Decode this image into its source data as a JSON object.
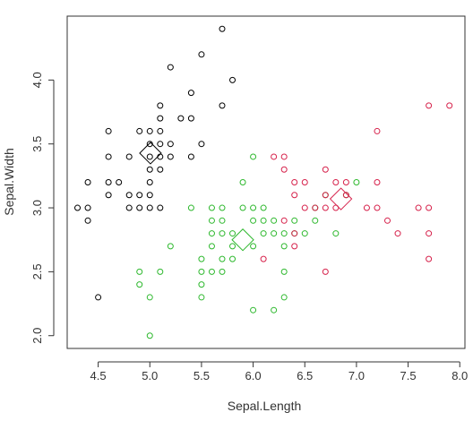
{
  "chart_data": {
    "type": "scatter",
    "xlabel": "Sepal.Length",
    "ylabel": "Sepal.Width",
    "xlim": [
      4.2,
      8.05
    ],
    "ylim": [
      1.9,
      4.5
    ],
    "xticks": [
      4.5,
      5.0,
      5.5,
      6.0,
      6.5,
      7.0,
      7.5,
      8.0
    ],
    "xtick_labels": [
      "4.5",
      "5.0",
      "5.5",
      "6.0",
      "6.5",
      "7.0",
      "7.5",
      "8.0"
    ],
    "yticks": [
      2.0,
      2.5,
      3.0,
      3.5,
      4.0
    ],
    "ytick_labels": [
      "2.0",
      "2.5",
      "3.0",
      "3.5",
      "4.0"
    ],
    "grid": false,
    "legend": "none",
    "colors": {
      "cluster1": "#000000",
      "cluster2": "#2db82d",
      "cluster3": "#d6204a",
      "axis": "#333333"
    },
    "series": [
      {
        "color": "#000000",
        "centroid": [
          5.006,
          3.428
        ],
        "points": [
          [
            4.3,
            3.0
          ],
          [
            4.4,
            3.2
          ],
          [
            4.4,
            3.0
          ],
          [
            4.4,
            2.9
          ],
          [
            4.5,
            2.3
          ],
          [
            4.6,
            3.6
          ],
          [
            4.6,
            3.4
          ],
          [
            4.6,
            3.2
          ],
          [
            4.6,
            3.1
          ],
          [
            4.7,
            3.2
          ],
          [
            4.8,
            3.4
          ],
          [
            4.8,
            3.1
          ],
          [
            4.8,
            3.0
          ],
          [
            4.9,
            3.1
          ],
          [
            4.9,
            3.0
          ],
          [
            5.0,
            3.6
          ],
          [
            5.0,
            3.5
          ],
          [
            5.0,
            3.4
          ],
          [
            5.0,
            3.3
          ],
          [
            5.0,
            3.2
          ],
          [
            5.0,
            3.0
          ],
          [
            5.1,
            3.8
          ],
          [
            5.1,
            3.7
          ],
          [
            5.1,
            3.5
          ],
          [
            5.1,
            3.4
          ],
          [
            5.1,
            3.3
          ],
          [
            5.2,
            4.1
          ],
          [
            5.2,
            3.5
          ],
          [
            5.2,
            3.4
          ],
          [
            5.3,
            3.7
          ],
          [
            5.4,
            3.9
          ],
          [
            5.4,
            3.7
          ],
          [
            5.4,
            3.4
          ],
          [
            5.5,
            4.2
          ],
          [
            5.5,
            3.5
          ],
          [
            5.7,
            4.4
          ],
          [
            5.7,
            3.8
          ],
          [
            5.8,
            4.0
          ],
          [
            4.9,
            3.6
          ],
          [
            5.1,
            3.6
          ],
          [
            5.0,
            3.1
          ],
          [
            5.1,
            3.0
          ]
        ]
      },
      {
        "color": "#2db82d",
        "centroid": [
          5.9,
          2.75
        ],
        "points": [
          [
            4.9,
            2.5
          ],
          [
            4.9,
            2.4
          ],
          [
            5.0,
            2.3
          ],
          [
            5.0,
            2.0
          ],
          [
            5.1,
            2.5
          ],
          [
            5.2,
            2.7
          ],
          [
            5.4,
            3.0
          ],
          [
            5.5,
            2.6
          ],
          [
            5.5,
            2.5
          ],
          [
            5.5,
            2.4
          ],
          [
            5.5,
            2.3
          ],
          [
            5.6,
            3.0
          ],
          [
            5.6,
            2.9
          ],
          [
            5.6,
            2.8
          ],
          [
            5.6,
            2.7
          ],
          [
            5.6,
            2.5
          ],
          [
            5.7,
            3.0
          ],
          [
            5.7,
            2.9
          ],
          [
            5.7,
            2.8
          ],
          [
            5.7,
            2.6
          ],
          [
            5.7,
            2.5
          ],
          [
            5.8,
            2.8
          ],
          [
            5.8,
            2.7
          ],
          [
            5.8,
            2.6
          ],
          [
            5.9,
            3.2
          ],
          [
            5.9,
            3.0
          ],
          [
            6.0,
            3.4
          ],
          [
            6.0,
            3.0
          ],
          [
            6.0,
            2.9
          ],
          [
            6.0,
            2.7
          ],
          [
            6.0,
            2.2
          ],
          [
            6.1,
            3.0
          ],
          [
            6.1,
            2.9
          ],
          [
            6.1,
            2.8
          ],
          [
            6.2,
            2.9
          ],
          [
            6.2,
            2.8
          ],
          [
            6.2,
            2.2
          ],
          [
            6.3,
            2.8
          ],
          [
            6.3,
            2.7
          ],
          [
            6.3,
            2.5
          ],
          [
            6.3,
            2.3
          ],
          [
            6.4,
            2.9
          ],
          [
            6.4,
            2.8
          ],
          [
            6.5,
            2.8
          ],
          [
            6.6,
            3.0
          ],
          [
            6.6,
            2.9
          ],
          [
            6.7,
            3.1
          ],
          [
            6.8,
            2.8
          ],
          [
            6.9,
            3.1
          ],
          [
            7.0,
            3.2
          ]
        ]
      },
      {
        "color": "#d6204a",
        "centroid": [
          6.85,
          3.07
        ],
        "points": [
          [
            6.1,
            2.6
          ],
          [
            6.2,
            3.4
          ],
          [
            6.3,
            3.4
          ],
          [
            6.3,
            3.3
          ],
          [
            6.3,
            2.9
          ],
          [
            6.4,
            3.2
          ],
          [
            6.4,
            3.1
          ],
          [
            6.4,
            2.8
          ],
          [
            6.4,
            2.7
          ],
          [
            6.5,
            3.2
          ],
          [
            6.5,
            3.0
          ],
          [
            6.6,
            3.0
          ],
          [
            6.7,
            3.3
          ],
          [
            6.7,
            3.1
          ],
          [
            6.7,
            3.0
          ],
          [
            6.7,
            2.5
          ],
          [
            6.8,
            3.2
          ],
          [
            6.8,
            3.0
          ],
          [
            6.9,
            3.2
          ],
          [
            6.9,
            3.1
          ],
          [
            7.1,
            3.0
          ],
          [
            7.2,
            3.6
          ],
          [
            7.2,
            3.2
          ],
          [
            7.2,
            3.0
          ],
          [
            7.3,
            2.9
          ],
          [
            7.4,
            2.8
          ],
          [
            7.6,
            3.0
          ],
          [
            7.7,
            3.8
          ],
          [
            7.7,
            3.0
          ],
          [
            7.7,
            2.8
          ],
          [
            7.7,
            2.6
          ],
          [
            7.9,
            3.8
          ]
        ]
      }
    ]
  }
}
